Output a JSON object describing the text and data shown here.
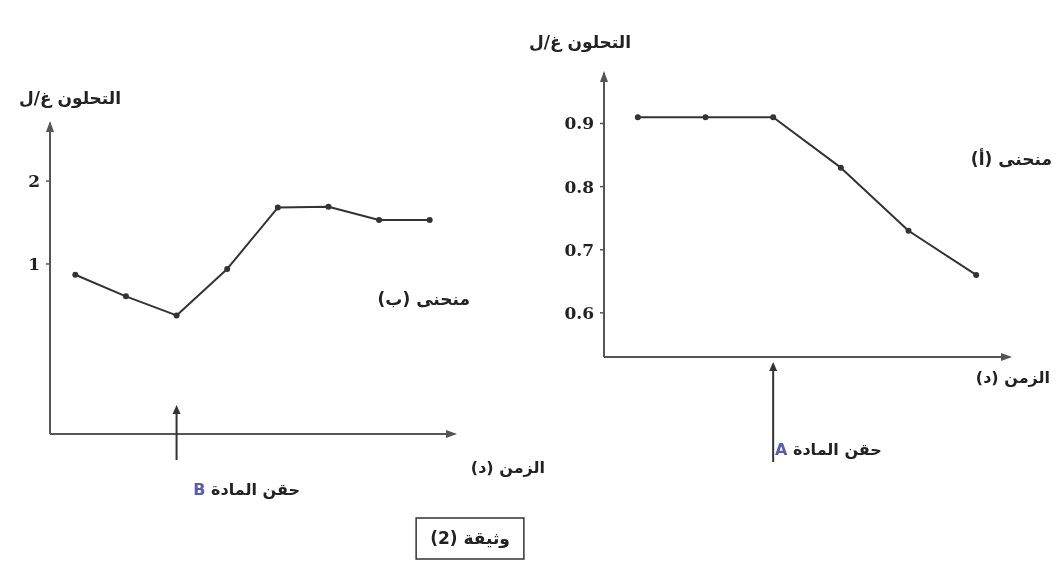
{
  "chart_data": [
    {
      "type": "line",
      "ylabel": "التحلون غ/ل",
      "xlabel": "الزمن (د)",
      "categories": [
        null,
        null,
        null,
        null,
        null,
        null,
        null,
        null
      ],
      "series": [
        {
          "name": "منحنى (ب)",
          "color": "#333333",
          "values": [
            0.87,
            0.61,
            0.38,
            0.94,
            1.68,
            1.69,
            1.53,
            1.53
          ]
        }
      ],
      "ylim": [
        -1.05,
        2.7
      ],
      "yticks": [
        1,
        2
      ],
      "tick_labels": "y",
      "marker": "circle",
      "grid": false,
      "annotations": [
        "حقن المادة B",
        "وثيقة (2)"
      ]
    },
    {
      "type": "line",
      "ylabel": "التحلون غ/ل",
      "xlabel": "الزمن (د)",
      "categories": [
        null,
        null,
        null,
        null,
        null,
        null
      ],
      "series": [
        {
          "name": "منحنى (أ)",
          "color": "#333333",
          "values": [
            0.91,
            0.91,
            0.91,
            0.83,
            0.73,
            0.66
          ]
        }
      ],
      "ylim": [
        0.53,
        0.98
      ],
      "yticks": [
        0.6,
        0.7,
        0.8,
        0.9
      ],
      "tick_labels": "y",
      "marker": "circle",
      "grid": false,
      "annotations": [
        "حقن المادة A"
      ]
    }
  ]
}
